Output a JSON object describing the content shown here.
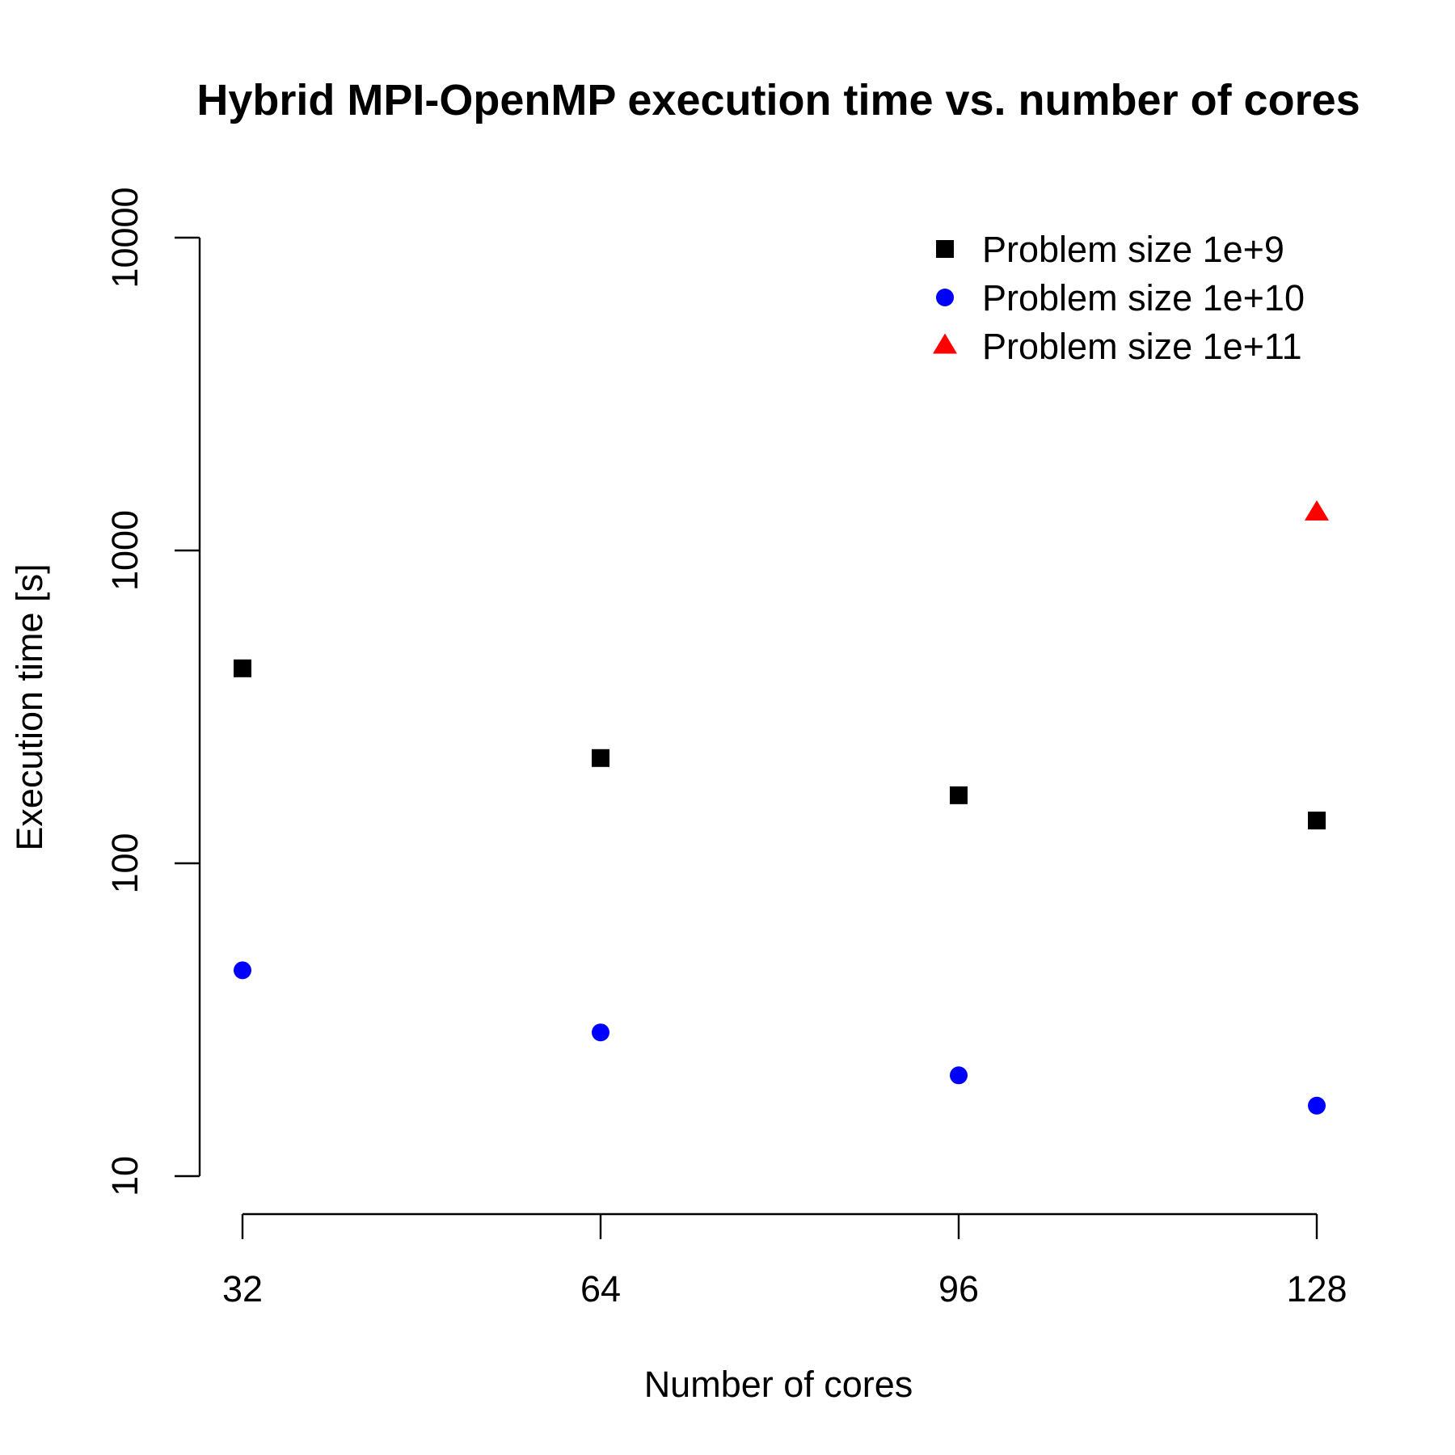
{
  "chart_data": {
    "type": "scatter",
    "title": "Hybrid MPI-OpenMP execution time vs. number of cores",
    "xlabel": "Number of cores",
    "ylabel": "Execution time [s]",
    "x_ticks": [
      32,
      64,
      96,
      128
    ],
    "x_tick_labels": [
      "32",
      "64",
      "96",
      "128"
    ],
    "y_scale": "log",
    "y_ticks": [
      10,
      100,
      1000,
      10000
    ],
    "y_tick_labels": [
      "10",
      "100",
      "1000",
      "10000"
    ],
    "ylim": [
      10,
      10000
    ],
    "grid": false,
    "legend_position": "top-right",
    "series": [
      {
        "name": "Problem size 1e+9",
        "marker": "square",
        "color": "#000000",
        "x": [
          32,
          64,
          96,
          128
        ],
        "y": [
          420,
          217,
          165,
          137
        ]
      },
      {
        "name": "Problem size 1e+10",
        "marker": "circle",
        "color": "#0000FF",
        "x": [
          32,
          64,
          96,
          128
        ],
        "y": [
          45.5,
          28.8,
          21,
          16.8
        ]
      },
      {
        "name": "Problem size 1e+11",
        "marker": "triangle",
        "color": "#FF0000",
        "x": [
          128
        ],
        "y": [
          1320
        ]
      }
    ]
  }
}
